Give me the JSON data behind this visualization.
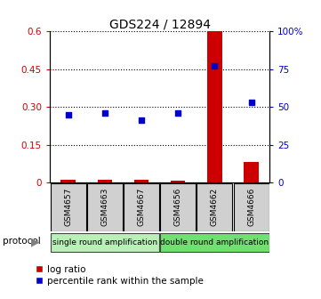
{
  "title": "GDS224 / 12894",
  "samples": [
    "GSM4657",
    "GSM4663",
    "GSM4667",
    "GSM4656",
    "GSM4662",
    "GSM4666"
  ],
  "log_ratio": [
    0.012,
    0.012,
    0.01,
    0.006,
    0.6,
    0.08
  ],
  "percentile_right": [
    45,
    46,
    41,
    46,
    77,
    53
  ],
  "protocol_groups": [
    {
      "label": "single round amplification",
      "start": 0,
      "end": 3,
      "color": "#b8f0b8"
    },
    {
      "label": "double round amplification",
      "start": 3,
      "end": 6,
      "color": "#70e070"
    }
  ],
  "left_yticks": [
    0,
    0.15,
    0.3,
    0.45,
    0.6
  ],
  "left_yticklabels": [
    "0",
    "0.15",
    "0.30",
    "0.45",
    "0.6"
  ],
  "right_yticks": [
    0,
    25,
    50,
    75,
    100
  ],
  "right_ylabels": [
    "0",
    "25",
    "50",
    "75",
    "100%"
  ],
  "ylim": [
    0,
    0.6
  ],
  "right_ylim": [
    0,
    100
  ],
  "bar_color": "#cc0000",
  "dot_color": "#0000cc",
  "left_tick_color": "#cc0000",
  "right_tick_color": "#0000cc",
  "background_color": "#ffffff",
  "grid_color": "#000000",
  "legend_log_ratio_label": "log ratio",
  "legend_percentile_label": "percentile rank within the sample",
  "sample_box_color": "#d0d0d0",
  "title_fontsize": 10,
  "tick_fontsize": 7.5,
  "sample_fontsize": 6.5,
  "protocol_fontsize": 6.5,
  "legend_fontsize": 7.5
}
